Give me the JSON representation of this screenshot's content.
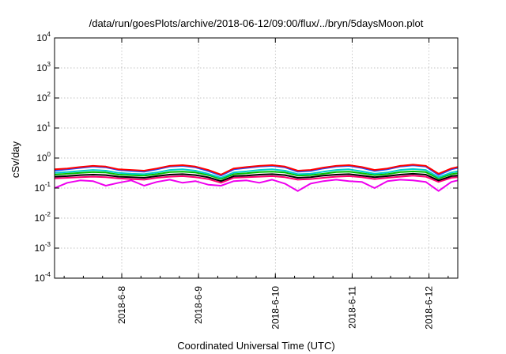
{
  "chart_data": {
    "type": "line",
    "title": "/data/run/goesPlots/archive/2018-06-12/09:00/flux/../bryn/5daysMoon.plot",
    "xlabel": "Coordinated Universal Time (UTC)",
    "ylabel": "cSv/day",
    "yscale": "log",
    "ylim": [
      0.0001,
      10000
    ],
    "xlim": [
      "2018-06-07T03:00",
      "2018-06-12T09:00"
    ],
    "grid": true,
    "legend": "none",
    "x_tick_labels": [
      "2018-6-8",
      "2018-6-9",
      "2018-6-10",
      "2018-6-11",
      "2018-6-12"
    ],
    "y_tick_labels": [
      {
        "base": "10",
        "exp": "4"
      },
      {
        "base": "10",
        "exp": "3"
      },
      {
        "base": "10",
        "exp": "2"
      },
      {
        "base": "10",
        "exp": "1"
      },
      {
        "base": "10",
        "exp": "0"
      },
      {
        "base": "10",
        "exp": "-1"
      },
      {
        "base": "10",
        "exp": "-2"
      },
      {
        "base": "10",
        "exp": "-3"
      },
      {
        "base": "10",
        "exp": "-4"
      }
    ],
    "x": [
      "2018-06-07T03:00",
      "2018-06-07T07:00",
      "2018-06-07T11:00",
      "2018-06-07T15:00",
      "2018-06-07T19:00",
      "2018-06-07T23:00",
      "2018-06-08T03:00",
      "2018-06-08T07:00",
      "2018-06-08T11:00",
      "2018-06-08T15:00",
      "2018-06-08T19:00",
      "2018-06-08T23:00",
      "2018-06-09T03:00",
      "2018-06-09T07:00",
      "2018-06-09T11:00",
      "2018-06-09T15:00",
      "2018-06-09T19:00",
      "2018-06-09T23:00",
      "2018-06-10T03:00",
      "2018-06-10T07:00",
      "2018-06-10T11:00",
      "2018-06-10T15:00",
      "2018-06-10T19:00",
      "2018-06-10T23:00",
      "2018-06-11T03:00",
      "2018-06-11T07:00",
      "2018-06-11T11:00",
      "2018-06-11T15:00",
      "2018-06-11T19:00",
      "2018-06-11T23:00",
      "2018-06-12T03:00",
      "2018-06-12T07:00",
      "2018-06-12T09:00"
    ],
    "series": [
      {
        "color": "#ff0000",
        "values": [
          0.42,
          0.45,
          0.5,
          0.55,
          0.52,
          0.42,
          0.4,
          0.38,
          0.45,
          0.55,
          0.58,
          0.52,
          0.4,
          0.28,
          0.45,
          0.5,
          0.55,
          0.58,
          0.52,
          0.38,
          0.4,
          0.48,
          0.55,
          0.58,
          0.5,
          0.4,
          0.45,
          0.55,
          0.6,
          0.55,
          0.3,
          0.45,
          0.5
        ]
      },
      {
        "color": "#2050ff",
        "values": [
          0.38,
          0.42,
          0.47,
          0.52,
          0.49,
          0.4,
          0.37,
          0.35,
          0.42,
          0.52,
          0.55,
          0.49,
          0.37,
          0.26,
          0.42,
          0.47,
          0.52,
          0.55,
          0.49,
          0.35,
          0.37,
          0.45,
          0.52,
          0.55,
          0.47,
          0.37,
          0.42,
          0.52,
          0.57,
          0.52,
          0.27,
          0.42,
          0.47
        ]
      },
      {
        "color": "#00cccc",
        "values": [
          0.32,
          0.34,
          0.37,
          0.4,
          0.38,
          0.32,
          0.3,
          0.29,
          0.33,
          0.4,
          0.42,
          0.38,
          0.3,
          0.22,
          0.33,
          0.36,
          0.4,
          0.42,
          0.38,
          0.29,
          0.3,
          0.35,
          0.4,
          0.42,
          0.36,
          0.3,
          0.33,
          0.4,
          0.43,
          0.4,
          0.23,
          0.33,
          0.36
        ]
      },
      {
        "color": "#00c000",
        "values": [
          0.28,
          0.3,
          0.32,
          0.34,
          0.33,
          0.28,
          0.27,
          0.26,
          0.29,
          0.34,
          0.35,
          0.33,
          0.27,
          0.2,
          0.29,
          0.31,
          0.34,
          0.35,
          0.33,
          0.26,
          0.27,
          0.3,
          0.34,
          0.35,
          0.31,
          0.27,
          0.29,
          0.34,
          0.36,
          0.34,
          0.21,
          0.29,
          0.31
        ]
      },
      {
        "color": "#000000",
        "values": [
          0.24,
          0.25,
          0.27,
          0.28,
          0.27,
          0.24,
          0.23,
          0.22,
          0.25,
          0.28,
          0.29,
          0.27,
          0.23,
          0.17,
          0.25,
          0.26,
          0.28,
          0.29,
          0.27,
          0.22,
          0.23,
          0.26,
          0.28,
          0.29,
          0.26,
          0.23,
          0.25,
          0.28,
          0.3,
          0.28,
          0.18,
          0.25,
          0.26
        ]
      },
      {
        "color": "#ff0070",
        "values": [
          0.21,
          0.22,
          0.23,
          0.24,
          0.23,
          0.21,
          0.2,
          0.19,
          0.22,
          0.24,
          0.25,
          0.23,
          0.2,
          0.15,
          0.22,
          0.23,
          0.24,
          0.25,
          0.23,
          0.19,
          0.2,
          0.22,
          0.24,
          0.25,
          0.23,
          0.2,
          0.22,
          0.24,
          0.26,
          0.24,
          0.16,
          0.22,
          0.23
        ]
      },
      {
        "color": "#ee00ee",
        "values": [
          0.1,
          0.15,
          0.18,
          0.17,
          0.12,
          0.15,
          0.18,
          0.12,
          0.16,
          0.19,
          0.15,
          0.17,
          0.13,
          0.12,
          0.17,
          0.18,
          0.15,
          0.19,
          0.14,
          0.08,
          0.14,
          0.17,
          0.19,
          0.17,
          0.16,
          0.1,
          0.17,
          0.19,
          0.18,
          0.16,
          0.08,
          0.16,
          0.18
        ]
      }
    ]
  }
}
